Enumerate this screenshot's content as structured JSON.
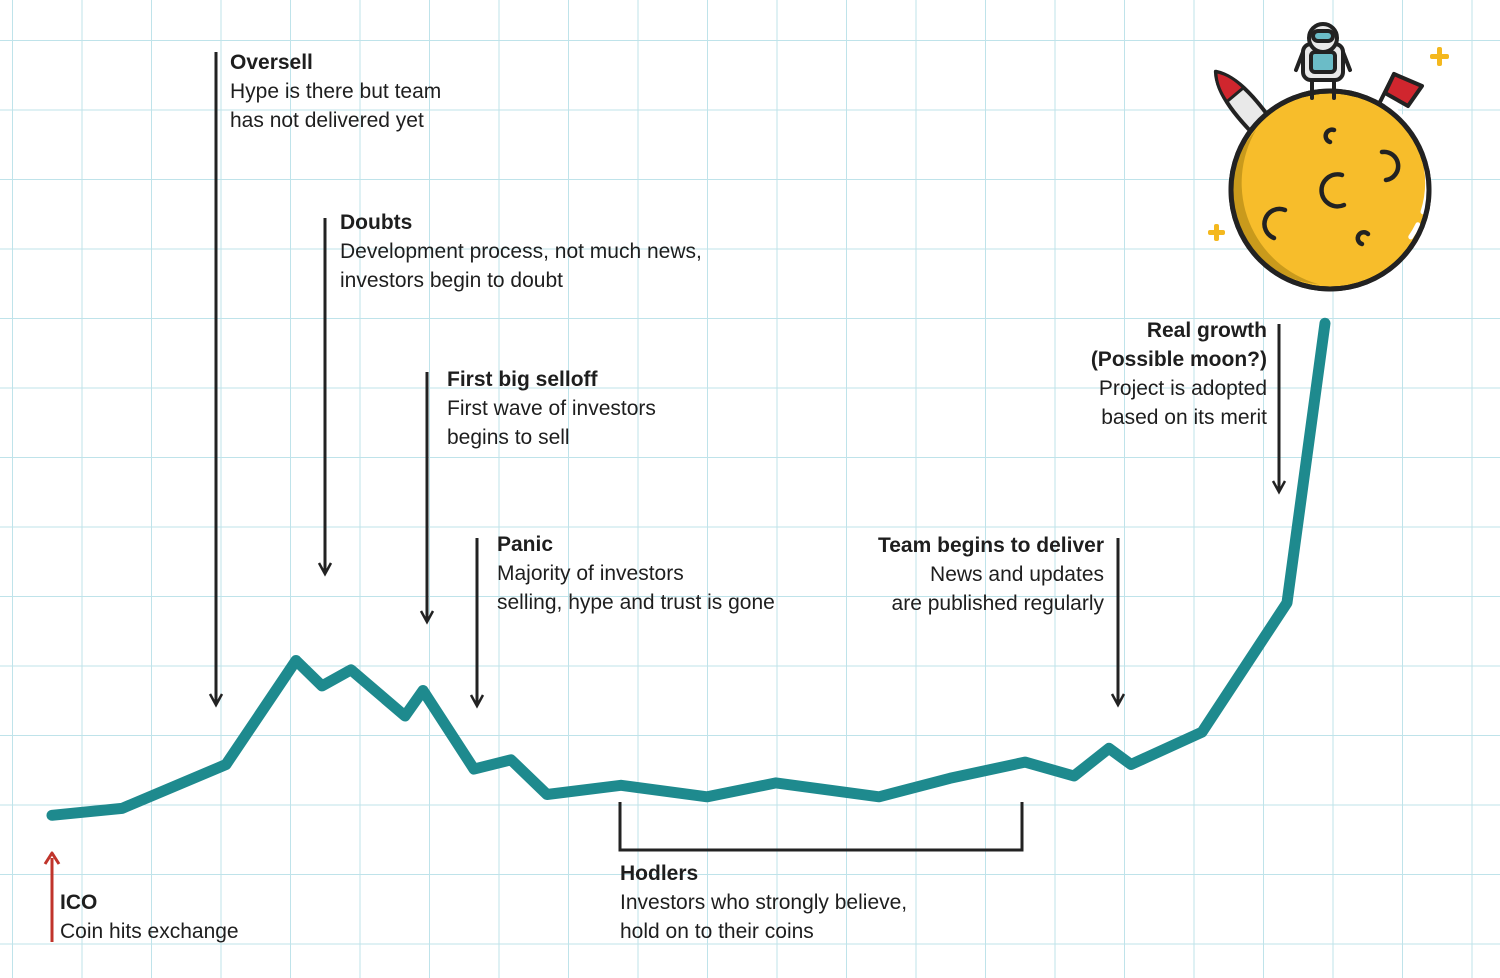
{
  "chart_data": {
    "type": "line",
    "title": "",
    "xlabel": "",
    "ylabel": "",
    "grid": true,
    "x": [
      0,
      1,
      2,
      3,
      4,
      5,
      6,
      7,
      8,
      9,
      10,
      11,
      12,
      13,
      14,
      15,
      16,
      17,
      18,
      19,
      20,
      21,
      22
    ],
    "series": [
      {
        "color": "#1e8a8e",
        "values": [
          12,
          15,
          34,
          79,
          68,
          75,
          55,
          66,
          32,
          36,
          21,
          25,
          20,
          26,
          20,
          28,
          35,
          29,
          41,
          34,
          48,
          104,
          225
        ]
      }
    ]
  },
  "colors": {
    "line": "#1e8a8e",
    "grid": "#bfe3ea",
    "arrow": "#222222",
    "ico_arrow": "#c0342b",
    "moon": "#f7bd2b",
    "moon_shadow": "#c99a1c",
    "outline": "#222222",
    "sparkle": "#f4b81e",
    "flag": "#d0262e",
    "astronaut_visor": "#6bbcc7"
  },
  "illustration": {
    "icon": "moon-with-astronaut-rocket-flag-icon"
  },
  "annotations": {
    "ico": {
      "title": "ICO",
      "lines": [
        "Coin hits exchange"
      ]
    },
    "oversell": {
      "title": "Oversell",
      "lines": [
        "Hype is there but team",
        "has not delivered yet"
      ]
    },
    "doubts": {
      "title": "Doubts",
      "lines": [
        "Development process, not much news,",
        "investors begin to doubt"
      ]
    },
    "selloff": {
      "title": "First big selloff",
      "lines": [
        "First wave of investors",
        "begins to sell"
      ]
    },
    "panic": {
      "title": "Panic",
      "lines": [
        "Majority of investors",
        "selling, hype and trust is gone"
      ]
    },
    "hodlers": {
      "title": "Hodlers",
      "lines": [
        "Investors who strongly believe,",
        "hold on to their coins"
      ]
    },
    "deliver": {
      "title": "Team begins to deliver",
      "lines": [
        "News and updates",
        "are published regularly"
      ]
    },
    "growth": {
      "title_lines": [
        "Real growth",
        "(Possible moon?)"
      ],
      "lines": [
        "Project is adopted",
        "based on its merit"
      ]
    }
  }
}
